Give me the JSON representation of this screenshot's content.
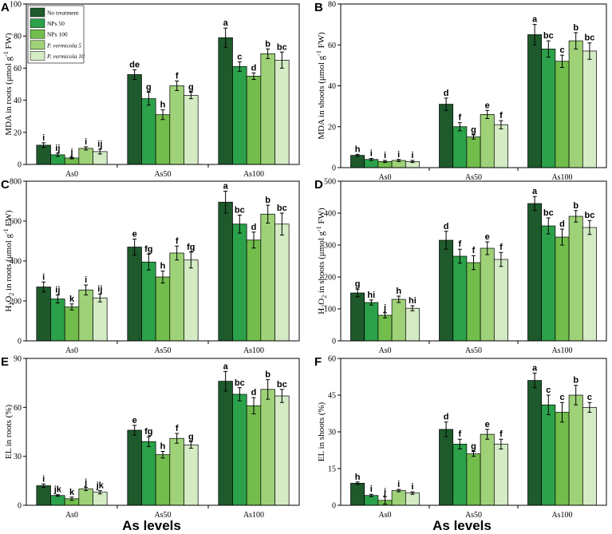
{
  "figure": {
    "xlabel": "As levels"
  },
  "legend": [
    {
      "label": "No treatment",
      "color": "#1e5a2c"
    },
    {
      "label": "NPs 50",
      "color": "#2ba14a"
    },
    {
      "label": "NPs 100",
      "color": "#72bd4c"
    },
    {
      "label": "P. vermicola 5",
      "color": "#9fd278"
    },
    {
      "label": "P. vermicola 10",
      "color": "#d4ebc4"
    }
  ],
  "chart_data": [
    {
      "panel": "A",
      "type": "bar",
      "ylabel_pre": "MDA in roots (μmol g",
      "ylabel_sup": "-1",
      "ylabel_post": " FW)",
      "categories": [
        "As0",
        "As50",
        "As100"
      ],
      "ylim": [
        0,
        100
      ],
      "yticks": [
        "0",
        "20",
        "40",
        "60",
        "80",
        "100"
      ],
      "series": [
        {
          "name": "No treatment",
          "values": [
            12,
            56,
            79
          ],
          "errors": [
            1.5,
            3,
            6
          ],
          "letters": [
            "i",
            "de",
            "a"
          ]
        },
        {
          "name": "NPs 50",
          "values": [
            6,
            41,
            61
          ],
          "errors": [
            1,
            4,
            3
          ],
          "letters": [
            "ij",
            "g",
            "c"
          ]
        },
        {
          "name": "NPs 100",
          "values": [
            4,
            31,
            55
          ],
          "errors": [
            0.5,
            3,
            2
          ],
          "letters": [
            "j",
            "h",
            "d"
          ]
        },
        {
          "name": "P. vermicola 5",
          "values": [
            10,
            49,
            69
          ],
          "errors": [
            1,
            3,
            3
          ],
          "letters": [
            "i",
            "f",
            "b"
          ]
        },
        {
          "name": "P. vermicola 10",
          "values": [
            8,
            43,
            65
          ],
          "errors": [
            1.5,
            2,
            5
          ],
          "letters": [
            "ij",
            "g",
            "bc"
          ]
        }
      ]
    },
    {
      "panel": "B",
      "type": "bar",
      "ylabel_pre": "MDA in shoots (μmol g",
      "ylabel_sup": "-1",
      "ylabel_post": " FW)",
      "categories": [
        "As0",
        "As50",
        "As100"
      ],
      "ylim": [
        0,
        80
      ],
      "yticks": [
        "0",
        "20",
        "40",
        "60",
        "80"
      ],
      "series": [
        {
          "name": "No treatment",
          "values": [
            6,
            31,
            65
          ],
          "errors": [
            0.5,
            3,
            5
          ],
          "letters": [
            "h",
            "d",
            "a"
          ]
        },
        {
          "name": "NPs 50",
          "values": [
            4,
            20,
            58
          ],
          "errors": [
            0.5,
            2,
            4
          ],
          "letters": [
            "i",
            "f",
            "bc"
          ]
        },
        {
          "name": "NPs 100",
          "values": [
            3,
            15,
            52
          ],
          "errors": [
            0.5,
            1,
            3
          ],
          "letters": [
            "i",
            "g",
            "c"
          ]
        },
        {
          "name": "P. vermicola 5",
          "values": [
            3.5,
            26,
            62
          ],
          "errors": [
            0.5,
            2,
            4
          ],
          "letters": [
            "i",
            "e",
            "b"
          ]
        },
        {
          "name": "P. vermicola 10",
          "values": [
            3,
            21,
            57
          ],
          "errors": [
            0.5,
            2,
            4
          ],
          "letters": [
            "i",
            "f",
            "bc"
          ]
        }
      ]
    },
    {
      "panel": "C",
      "type": "bar",
      "ylabel_pre": "H",
      "ylabel_sub": "2",
      "ylabel_mid": "O",
      "ylabel_sub2": "2",
      "ylabel_pre2": " in roots (μmol g",
      "ylabel_sup": "-1",
      "ylabel_post": " FW)",
      "categories": [
        "As0",
        "As50",
        "As100"
      ],
      "ylim": [
        0,
        800
      ],
      "yticks": [
        "0",
        "200",
        "400",
        "600",
        "800"
      ],
      "series": [
        {
          "name": "No treatment",
          "values": [
            270,
            470,
            695
          ],
          "errors": [
            25,
            40,
            55
          ],
          "letters": [
            "i",
            "e",
            "a"
          ]
        },
        {
          "name": "NPs 50",
          "values": [
            210,
            395,
            585
          ],
          "errors": [
            20,
            40,
            45
          ],
          "letters": [
            "ij",
            "fg",
            "bc"
          ]
        },
        {
          "name": "NPs 100",
          "values": [
            170,
            320,
            505
          ],
          "errors": [
            15,
            30,
            40
          ],
          "letters": [
            "k",
            "h",
            "d"
          ]
        },
        {
          "name": "P. vermicola 5",
          "values": [
            255,
            440,
            635
          ],
          "errors": [
            25,
            35,
            45
          ],
          "letters": [
            "i",
            "f",
            "b"
          ]
        },
        {
          "name": "P. vermicola 10",
          "values": [
            215,
            405,
            585
          ],
          "errors": [
            20,
            40,
            55
          ],
          "letters": [
            "ij",
            "fg",
            "bc"
          ]
        }
      ]
    },
    {
      "panel": "D",
      "type": "bar",
      "ylabel_pre": "H",
      "ylabel_sub": "2",
      "ylabel_mid": "O",
      "ylabel_sub2": "2",
      "ylabel_pre2": " in shoots (μmol g",
      "ylabel_sup": "-1",
      "ylabel_post": " FW)",
      "categories": [
        "As0",
        "As50",
        "As100"
      ],
      "ylim": [
        0,
        500
      ],
      "yticks": [
        "0",
        "100",
        "200",
        "300",
        "400",
        "500"
      ],
      "series": [
        {
          "name": "No treatment",
          "values": [
            150,
            315,
            430
          ],
          "errors": [
            12,
            28,
            22
          ],
          "letters": [
            "g",
            "d",
            "a"
          ]
        },
        {
          "name": "NPs 50",
          "values": [
            120,
            265,
            360
          ],
          "errors": [
            8,
            22,
            25
          ],
          "letters": [
            "hi",
            "f",
            "bc"
          ]
        },
        {
          "name": "NPs 100",
          "values": [
            80,
            245,
            325
          ],
          "errors": [
            8,
            22,
            25
          ],
          "letters": [
            "j",
            "f",
            "d"
          ]
        },
        {
          "name": "P. vermicola 5",
          "values": [
            130,
            290,
            390
          ],
          "errors": [
            10,
            20,
            18
          ],
          "letters": [
            "h",
            "e",
            "b"
          ]
        },
        {
          "name": "P. vermicola 10",
          "values": [
            102,
            255,
            355
          ],
          "errors": [
            8,
            22,
            22
          ],
          "letters": [
            "hi",
            "f",
            "bc"
          ]
        }
      ]
    },
    {
      "panel": "E",
      "type": "bar",
      "ylabel_pre": "EL in roots (%)",
      "categories": [
        "As0",
        "As50",
        "As100"
      ],
      "ylim": [
        0,
        90
      ],
      "yticks": [
        "0",
        "30",
        "60",
        "90"
      ],
      "series": [
        {
          "name": "No treatment",
          "values": [
            12,
            46,
            76
          ],
          "errors": [
            1,
            3,
            6
          ],
          "letters": [
            "i",
            "e",
            "a"
          ]
        },
        {
          "name": "NPs 50",
          "values": [
            6,
            39,
            68
          ],
          "errors": [
            0.5,
            3,
            4
          ],
          "letters": [
            "jk",
            "fg",
            "bc"
          ]
        },
        {
          "name": "NPs 100",
          "values": [
            4,
            31,
            61
          ],
          "errors": [
            1,
            2,
            5
          ],
          "letters": [
            "k",
            "h",
            "d"
          ]
        },
        {
          "name": "P. vermicola 5",
          "values": [
            10,
            41,
            71
          ],
          "errors": [
            1,
            3,
            6
          ],
          "letters": [
            "j",
            "f",
            "b"
          ]
        },
        {
          "name": "P. vermicola 10",
          "values": [
            8,
            37,
            67
          ],
          "errors": [
            1,
            2,
            4
          ],
          "letters": [
            "jk",
            "g",
            "bc"
          ]
        }
      ]
    },
    {
      "panel": "F",
      "type": "bar",
      "ylabel_pre": "EL in shoots (%)",
      "categories": [
        "As0",
        "As50",
        "As100"
      ],
      "ylim": [
        0,
        60
      ],
      "yticks": [
        "0",
        "15",
        "30",
        "45",
        "60"
      ],
      "series": [
        {
          "name": "No treatment",
          "values": [
            9,
            31,
            51
          ],
          "errors": [
            0.5,
            3,
            3
          ],
          "letters": [
            "h",
            "d",
            "a"
          ]
        },
        {
          "name": "NPs 50",
          "values": [
            4,
            25,
            41
          ],
          "errors": [
            0.5,
            2,
            4
          ],
          "letters": [
            "i",
            "f",
            "c"
          ]
        },
        {
          "name": "NPs 100",
          "values": [
            2,
            21,
            38
          ],
          "errors": [
            1.5,
            1,
            4
          ],
          "letters": [
            "j",
            "g",
            "c"
          ]
        },
        {
          "name": "P. vermicola 5",
          "values": [
            6,
            29,
            45
          ],
          "errors": [
            0.5,
            2,
            4
          ],
          "letters": [
            "i",
            "e",
            "b"
          ]
        },
        {
          "name": "P. vermicola 10",
          "values": [
            5,
            25,
            40
          ],
          "errors": [
            0.5,
            2,
            2
          ],
          "letters": [
            "i",
            "f",
            "c"
          ]
        }
      ]
    }
  ]
}
